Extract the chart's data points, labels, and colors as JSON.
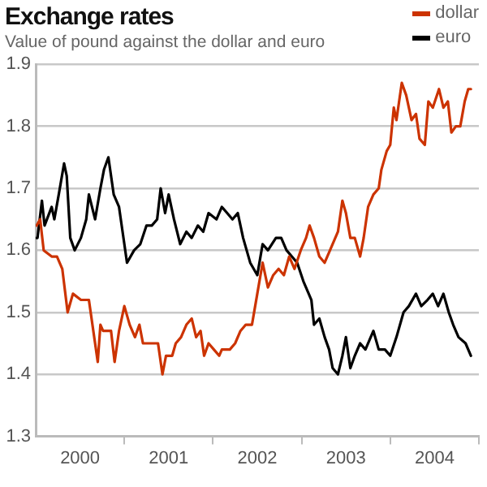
{
  "chart_data": {
    "type": "line",
    "title": "Exchange rates",
    "subtitle": "Value of pound against the dollar and euro",
    "xlim": [
      2000,
      2005
    ],
    "xticks": [
      {
        "value": 2000.5,
        "label": "2000"
      },
      {
        "value": 2001,
        "label": null
      },
      {
        "value": 2001.5,
        "label": "2001"
      },
      {
        "value": 2002,
        "label": null
      },
      {
        "value": 2002.5,
        "label": "2002"
      },
      {
        "value": 2003,
        "label": null
      },
      {
        "value": 2003.5,
        "label": "2003"
      },
      {
        "value": 2004,
        "label": null
      },
      {
        "value": 2004.5,
        "label": "2004"
      },
      {
        "value": 2005,
        "label": null
      }
    ],
    "ylim": [
      1.3,
      1.9
    ],
    "yticks": [
      1.3,
      1.4,
      1.5,
      1.6,
      1.7,
      1.8,
      1.9
    ],
    "grid": "y",
    "legend": "top right",
    "marker": "none",
    "line_style": "solid",
    "series": [
      {
        "name": "dollar",
        "color": "#cc3300",
        "x": [
          2000.01,
          2000.05,
          2000.09,
          2000.18,
          2000.21,
          2000.24,
          2000.3,
          2000.36,
          2000.42,
          2000.51,
          2000.6,
          2000.67,
          2000.7,
          2000.73,
          2000.76,
          2000.82,
          2000.85,
          2000.89,
          2000.94,
          2001.0,
          2001.06,
          2001.12,
          2001.17,
          2001.21,
          2001.28,
          2001.34,
          2001.38,
          2001.43,
          2001.47,
          2001.54,
          2001.58,
          2001.64,
          2001.7,
          2001.76,
          2001.81,
          2001.86,
          2001.9,
          2001.95,
          2002.01,
          2002.07,
          2002.1,
          2002.19,
          2002.25,
          2002.31,
          2002.37,
          2002.44,
          2002.5,
          2002.56,
          2002.62,
          2002.68,
          2002.74,
          2002.8,
          2002.86,
          2002.92,
          2002.99,
          2003.05,
          2003.09,
          2003.14,
          2003.2,
          2003.26,
          2003.32,
          2003.41,
          2003.46,
          2003.5,
          2003.55,
          2003.6,
          2003.66,
          2003.7,
          2003.75,
          2003.81,
          2003.87,
          2003.9,
          2003.96,
          2004.0,
          2004.04,
          2004.07,
          2004.13,
          2004.18,
          2004.24,
          2004.29,
          2004.33,
          2004.39,
          2004.43,
          2004.48,
          2004.55,
          2004.6,
          2004.65,
          2004.69,
          2004.74,
          2004.79,
          2004.84,
          2004.88,
          2004.91
        ],
        "values": [
          1.64,
          1.65,
          1.6,
          1.59,
          1.59,
          1.59,
          1.57,
          1.5,
          1.53,
          1.52,
          1.52,
          1.45,
          1.42,
          1.48,
          1.47,
          1.47,
          1.47,
          1.42,
          1.47,
          1.51,
          1.48,
          1.46,
          1.48,
          1.45,
          1.45,
          1.45,
          1.45,
          1.4,
          1.43,
          1.43,
          1.45,
          1.46,
          1.48,
          1.49,
          1.46,
          1.47,
          1.43,
          1.45,
          1.44,
          1.43,
          1.44,
          1.44,
          1.45,
          1.47,
          1.48,
          1.48,
          1.53,
          1.58,
          1.54,
          1.56,
          1.57,
          1.56,
          1.59,
          1.57,
          1.6,
          1.62,
          1.64,
          1.62,
          1.59,
          1.58,
          1.6,
          1.63,
          1.68,
          1.66,
          1.62,
          1.62,
          1.59,
          1.62,
          1.67,
          1.69,
          1.7,
          1.73,
          1.76,
          1.77,
          1.83,
          1.81,
          1.87,
          1.85,
          1.81,
          1.82,
          1.78,
          1.77,
          1.84,
          1.83,
          1.86,
          1.83,
          1.84,
          1.79,
          1.8,
          1.8,
          1.84,
          1.86,
          1.86
        ]
      },
      {
        "name": "euro",
        "color": "#000000",
        "x": [
          2000.01,
          2000.02,
          2000.07,
          2000.1,
          2000.18,
          2000.21,
          2000.26,
          2000.32,
          2000.35,
          2000.39,
          2000.44,
          2000.51,
          2000.57,
          2000.6,
          2000.67,
          2000.73,
          2000.77,
          2000.82,
          2000.88,
          2000.94,
          2000.99,
          2001.03,
          2001.11,
          2001.18,
          2001.25,
          2001.31,
          2001.37,
          2001.41,
          2001.46,
          2001.5,
          2001.56,
          2001.63,
          2001.7,
          2001.76,
          2001.83,
          2001.89,
          2001.95,
          2002.04,
          2002.1,
          2002.16,
          2002.22,
          2002.28,
          2002.34,
          2002.42,
          2002.5,
          2002.56,
          2002.62,
          2002.71,
          2002.77,
          2002.83,
          2002.89,
          2002.95,
          2003.02,
          2003.08,
          2003.11,
          2003.14,
          2003.2,
          2003.26,
          2003.31,
          2003.35,
          2003.41,
          2003.46,
          2003.5,
          2003.55,
          2003.6,
          2003.66,
          2003.72,
          2003.81,
          2003.87,
          2003.94,
          2004.0,
          2004.07,
          2004.15,
          2004.21,
          2004.29,
          2004.35,
          2004.42,
          2004.48,
          2004.54,
          2004.6,
          2004.66,
          2004.71,
          2004.77,
          2004.85,
          2004.91
        ],
        "values": [
          1.62,
          1.62,
          1.68,
          1.64,
          1.67,
          1.65,
          1.69,
          1.74,
          1.72,
          1.62,
          1.6,
          1.62,
          1.65,
          1.69,
          1.65,
          1.7,
          1.73,
          1.75,
          1.69,
          1.67,
          1.62,
          1.58,
          1.6,
          1.61,
          1.64,
          1.64,
          1.65,
          1.7,
          1.66,
          1.69,
          1.65,
          1.61,
          1.63,
          1.62,
          1.64,
          1.63,
          1.66,
          1.65,
          1.67,
          1.66,
          1.65,
          1.66,
          1.62,
          1.58,
          1.56,
          1.61,
          1.6,
          1.62,
          1.62,
          1.6,
          1.59,
          1.58,
          1.55,
          1.53,
          1.52,
          1.48,
          1.49,
          1.46,
          1.44,
          1.41,
          1.4,
          1.43,
          1.46,
          1.41,
          1.43,
          1.45,
          1.44,
          1.47,
          1.44,
          1.44,
          1.43,
          1.46,
          1.5,
          1.51,
          1.53,
          1.51,
          1.52,
          1.53,
          1.51,
          1.53,
          1.5,
          1.48,
          1.46,
          1.45,
          1.43
        ]
      }
    ]
  }
}
